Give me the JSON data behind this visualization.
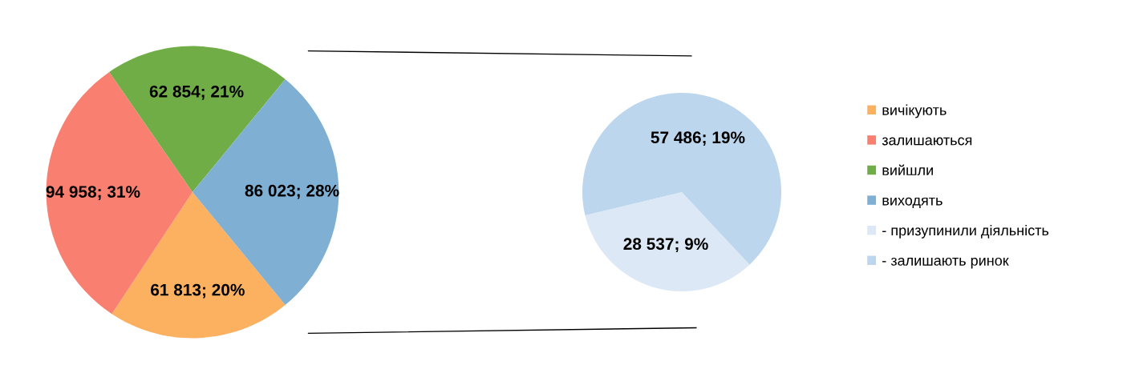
{
  "chart_data": [
    {
      "type": "pie",
      "categories": [
        "вичікують",
        "залишаються",
        "вийшли",
        "виходять"
      ],
      "values": [
        61813,
        94958,
        62854,
        86023
      ],
      "colors": [
        "#fbb15f",
        "#f98070",
        "#71ad47",
        "#7fafd3"
      ],
      "value_labels": [
        "61 813; 20%",
        "94 958; 31%",
        "62 854; 21%",
        "86 023; 28%"
      ],
      "legend": "right"
    },
    {
      "type": "pie",
      "categories": [
        "- призупинили діяльність",
        "- залишають ринок"
      ],
      "values": [
        28537,
        57486
      ],
      "colors": [
        "#dce8f5",
        "#bcd6ee"
      ],
      "value_labels": [
        "28 537; 9%",
        "57 486; 19%"
      ],
      "legend": "right"
    }
  ]
}
